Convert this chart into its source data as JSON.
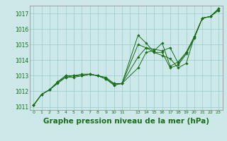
{
  "background_color": "#cce8e8",
  "grid_color": "#99cccc",
  "line_color": "#1a6e1a",
  "title": "Graphe pression niveau de la mer (hPa)",
  "title_fontsize": 7.5,
  "ylabel_ticks": [
    1011,
    1012,
    1013,
    1014,
    1015,
    1016,
    1017
  ],
  "xtick_positions": [
    0,
    1,
    2,
    3,
    4,
    5,
    6,
    7,
    8,
    9,
    10,
    11,
    13,
    14,
    15,
    16,
    17,
    18,
    19,
    20,
    21,
    22,
    23
  ],
  "xtick_labels": [
    "0",
    "1",
    "2",
    "3",
    "4",
    "5",
    "6",
    "7",
    "8",
    "9",
    "10",
    "11",
    "13",
    "14",
    "15",
    "16",
    "17",
    "18",
    "19",
    "20",
    "21",
    "22",
    "23"
  ],
  "xlim": [
    -0.5,
    23.5
  ],
  "ylim": [
    1010.8,
    1017.5
  ],
  "series": [
    {
      "x": [
        0,
        1,
        2,
        3,
        4,
        5,
        6,
        7,
        8,
        9,
        10,
        11,
        13,
        14,
        15,
        16,
        17,
        18,
        19,
        20,
        21,
        22,
        23
      ],
      "y": [
        1011.1,
        1011.8,
        1012.1,
        1012.6,
        1013.0,
        1013.0,
        1013.1,
        1013.1,
        1013.0,
        1012.9,
        1012.5,
        1012.5,
        1013.5,
        1014.5,
        1014.6,
        1015.1,
        1013.6,
        1013.9,
        1014.5,
        1015.5,
        1016.7,
        1016.8,
        1017.2
      ]
    },
    {
      "x": [
        0,
        1,
        2,
        3,
        4,
        5,
        6,
        7,
        8,
        9,
        10,
        11,
        13,
        14,
        15,
        16,
        17,
        18,
        19,
        20,
        21,
        22,
        23
      ],
      "y": [
        1011.1,
        1011.8,
        1012.1,
        1012.5,
        1012.9,
        1012.9,
        1013.0,
        1013.1,
        1013.0,
        1012.8,
        1012.4,
        1012.5,
        1015.6,
        1015.1,
        1014.5,
        1014.3,
        1014.1,
        1013.5,
        1013.8,
        1015.5,
        1016.7,
        1016.8,
        1017.2
      ]
    },
    {
      "x": [
        0,
        1,
        2,
        3,
        4,
        5,
        6,
        7,
        8,
        9,
        10,
        11,
        13,
        14,
        15,
        16,
        17,
        18,
        19,
        20,
        21,
        22,
        23
      ],
      "y": [
        1011.1,
        1011.8,
        1012.1,
        1012.6,
        1012.9,
        1013.0,
        1013.0,
        1013.1,
        1013.0,
        1012.8,
        1012.4,
        1012.5,
        1014.2,
        1014.8,
        1014.5,
        1014.5,
        1013.5,
        1013.7,
        1014.4,
        1015.4,
        1016.7,
        1016.8,
        1017.3
      ]
    },
    {
      "x": [
        0,
        1,
        2,
        3,
        4,
        5,
        6,
        7,
        8,
        9,
        10,
        11,
        13,
        14,
        15,
        16,
        17,
        18,
        19,
        20,
        21,
        22,
        23
      ],
      "y": [
        1011.1,
        1011.8,
        1012.1,
        1012.6,
        1013.0,
        1013.0,
        1013.0,
        1013.1,
        1013.0,
        1012.8,
        1012.5,
        1012.5,
        1015.0,
        1014.8,
        1014.7,
        1014.6,
        1014.8,
        1013.8,
        1014.5,
        1015.5,
        1016.7,
        1016.8,
        1017.3
      ]
    }
  ]
}
